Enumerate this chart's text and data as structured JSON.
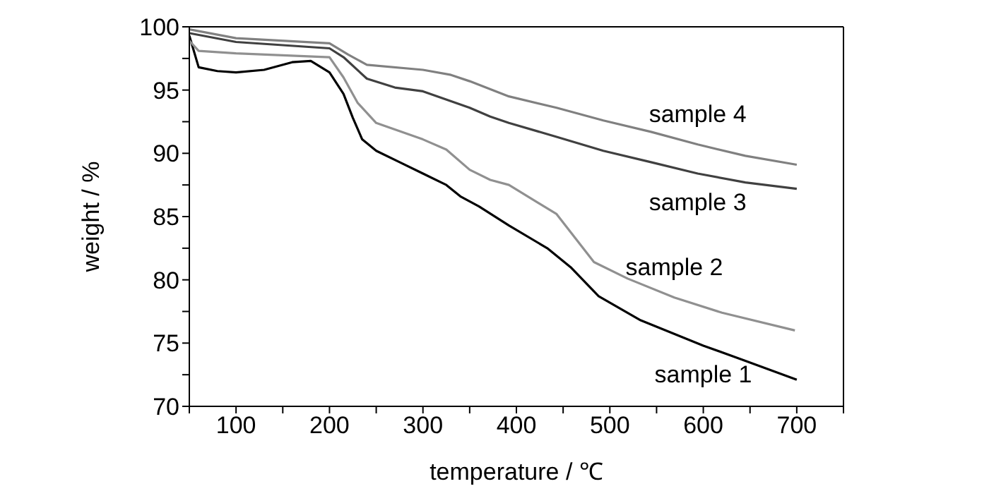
{
  "chart_data": {
    "type": "line",
    "xlabel": "temperature / ℃",
    "ylabel": "weight / %",
    "xlim": [
      50,
      750
    ],
    "ylim": [
      70,
      100
    ],
    "xticks": [
      {
        "value": 50,
        "label": null
      },
      100,
      {
        "value": 150,
        "label": null
      },
      200,
      {
        "value": 250,
        "label": null
      },
      300,
      {
        "value": 350,
        "label": null
      },
      400,
      {
        "value": 450,
        "label": null
      },
      500,
      {
        "value": 550,
        "label": null
      },
      600,
      {
        "value": 650,
        "label": null
      },
      700,
      {
        "value": 750,
        "label": null
      }
    ],
    "yticks": [
      70,
      {
        "value": 72.5,
        "label": null
      },
      75,
      {
        "value": 77.5,
        "label": null
      },
      80,
      {
        "value": 82.5,
        "label": null
      },
      85,
      {
        "value": 87.5,
        "label": null
      },
      90,
      {
        "value": 92.5,
        "label": null
      },
      95,
      {
        "value": 97.5,
        "label": null
      },
      100
    ],
    "grid": false,
    "legend": false,
    "marker": "none",
    "line_style": "solid",
    "series": [
      {
        "name": "sample 1",
        "color": "#000000",
        "x": [
          50,
          60,
          80,
          100,
          130,
          160,
          180,
          200,
          215,
          225,
          235,
          250,
          275,
          300,
          325,
          340,
          360,
          392,
          433,
          458,
          488,
          533,
          600,
          645,
          700
        ],
        "values": [
          99.3,
          96.8,
          96.5,
          96.4,
          96.6,
          97.2,
          97.3,
          96.4,
          94.7,
          92.8,
          91.1,
          90.2,
          89.3,
          88.4,
          87.5,
          86.6,
          85.8,
          84.3,
          82.5,
          81,
          78.7,
          76.8,
          74.8,
          73.6,
          72.1
        ]
      },
      {
        "name": "sample 2",
        "color": "#909090",
        "x": [
          50,
          60,
          100,
          200,
          215,
          230,
          250,
          300,
          325,
          350,
          372,
          392,
          443,
          463,
          483,
          519,
          569,
          620,
          698
        ],
        "values": [
          98.9,
          98.1,
          97.9,
          97.6,
          96,
          94,
          92.4,
          91.1,
          90.3,
          88.7,
          87.9,
          87.5,
          85.2,
          83.3,
          81.4,
          80.1,
          78.6,
          77.4,
          76
        ]
      },
      {
        "name": "sample 3",
        "color": "#404040",
        "x": [
          50,
          100,
          200,
          215,
          240,
          270,
          300,
          350,
          372,
          392,
          443,
          493,
          544,
          594,
          645,
          700
        ],
        "values": [
          99.5,
          98.8,
          98.3,
          97.6,
          95.9,
          95.2,
          94.9,
          93.6,
          92.9,
          92.4,
          91.3,
          90.2,
          89.3,
          88.4,
          87.7,
          87.2
        ]
      },
      {
        "name": "sample 4",
        "color": "#808080",
        "x": [
          50,
          100,
          200,
          220,
          240,
          300,
          330,
          350,
          392,
          443,
          493,
          544,
          594,
          645,
          700
        ],
        "values": [
          99.8,
          99.1,
          98.7,
          97.8,
          97,
          96.6,
          96.2,
          95.7,
          94.5,
          93.6,
          92.6,
          91.7,
          90.7,
          89.8,
          89.1
        ]
      }
    ]
  }
}
